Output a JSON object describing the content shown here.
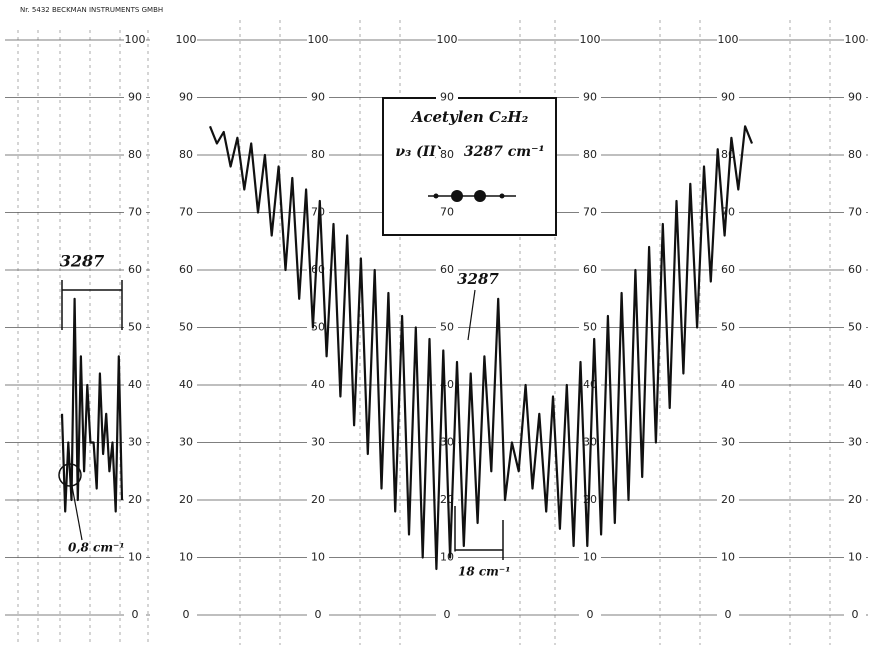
{
  "chart_data": [
    {
      "type": "line",
      "title": "Nr. 5432 BECKMAN INSTRUMENTS GMBH",
      "annotations": [
        "3287",
        "0,8 cm⁻¹"
      ],
      "color": "#111111",
      "ylim": [
        0,
        100
      ],
      "yticks": [
        0,
        10,
        20,
        30,
        40,
        50,
        60,
        70,
        80,
        90,
        100
      ],
      "grid": true,
      "values": [
        35,
        18,
        30,
        20,
        55,
        20,
        45,
        25,
        40,
        30,
        30,
        22,
        42,
        28,
        35,
        25,
        30,
        18,
        45,
        20
      ]
    },
    {
      "type": "line",
      "title": "Acetylen C₂H₂",
      "subtitle": "ν₃ (II) = 3287 cm⁻¹",
      "annotations": [
        "3287",
        "18 cm⁻¹"
      ],
      "color": "#111111",
      "ylim": [
        0,
        100
      ],
      "yticks": [
        0,
        10,
        20,
        30,
        40,
        50,
        60,
        70,
        80,
        90,
        100
      ],
      "grid": true,
      "values": [
        85,
        82,
        84,
        78,
        83,
        74,
        82,
        70,
        80,
        66,
        78,
        60,
        76,
        55,
        74,
        50,
        72,
        45,
        68,
        38,
        66,
        33,
        62,
        28,
        60,
        22,
        56,
        18,
        52,
        14,
        50,
        10,
        48,
        8,
        46,
        10,
        44,
        12,
        42,
        16,
        45,
        25,
        55,
        20,
        30,
        25,
        40,
        22,
        35,
        18,
        38,
        15,
        40,
        12,
        44,
        12,
        48,
        14,
        52,
        16,
        56,
        20,
        60,
        24,
        64,
        30,
        68,
        36,
        72,
        42,
        75,
        50,
        78,
        58,
        81,
        66,
        83,
        74,
        85,
        82
      ]
    }
  ]
}
